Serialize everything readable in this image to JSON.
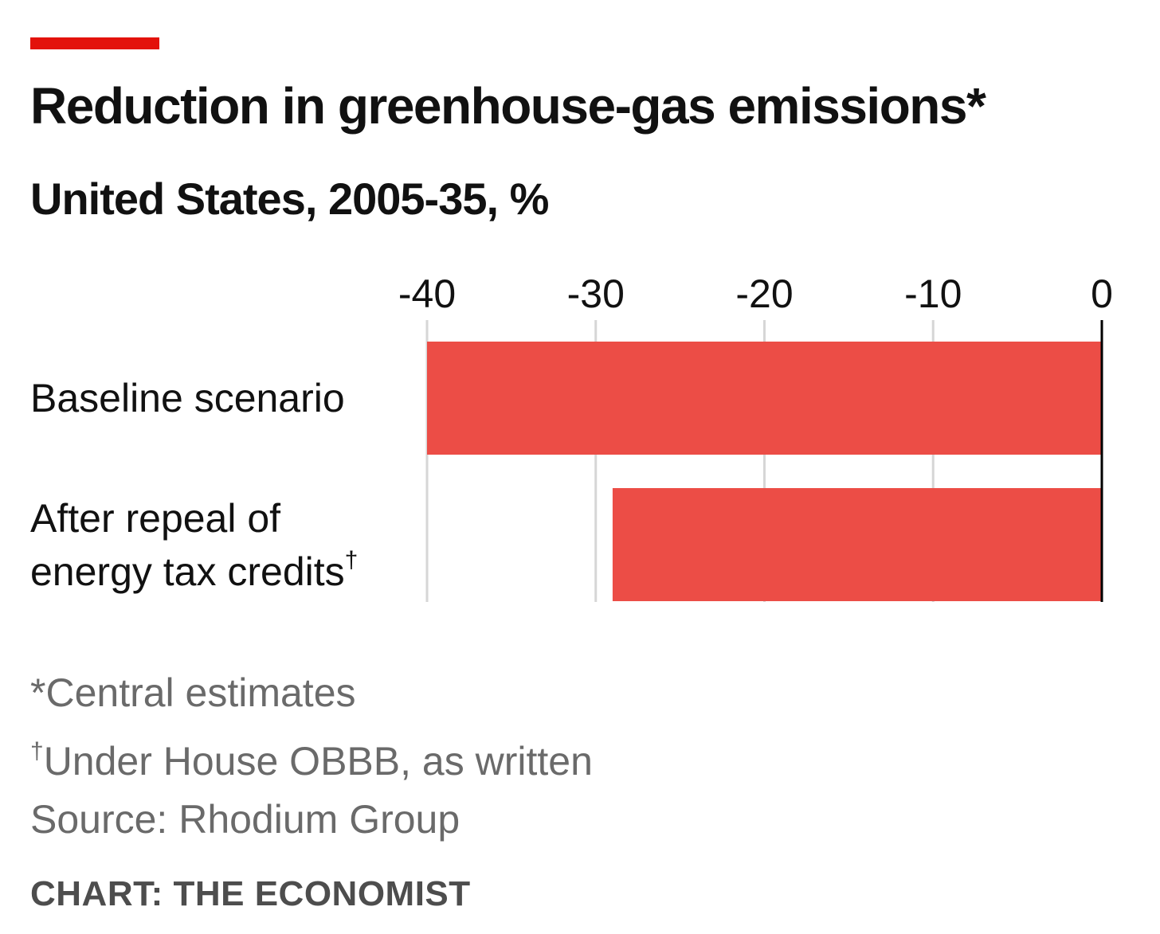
{
  "header": {
    "title": "Reduction in greenhouse-gas emissions*",
    "subtitle": "United States, 2005-35, %"
  },
  "chart_data": {
    "type": "bar",
    "orientation": "horizontal",
    "title": "Reduction in greenhouse-gas emissions*",
    "subtitle": "United States, 2005-35, %",
    "categories": [
      {
        "lines": [
          "Baseline scenario"
        ],
        "mark": ""
      },
      {
        "lines": [
          "After repeal of",
          "energy tax credits"
        ],
        "mark": "†"
      }
    ],
    "values": [
      -40,
      -29
    ],
    "xlim": [
      -40,
      0
    ],
    "ticks": [
      -40,
      -30,
      -20,
      -10,
      0
    ],
    "tick_labels": [
      "-40",
      "-30",
      "-20",
      "-10",
      "0"
    ],
    "axis_position": "top",
    "grid": true,
    "bar_color": "#ec4d46"
  },
  "footnotes": {
    "note1_mark": "*",
    "note1": "Central estimates",
    "note2_mark": "†",
    "note2": "Under House OBBB, as written",
    "source": "Source: Rhodium Group"
  },
  "credit": "CHART: THE ECONOMIST",
  "colors": {
    "accent": "#e3120b",
    "bar": "#ec4d46",
    "footnote_text": "#6a6a6a"
  }
}
